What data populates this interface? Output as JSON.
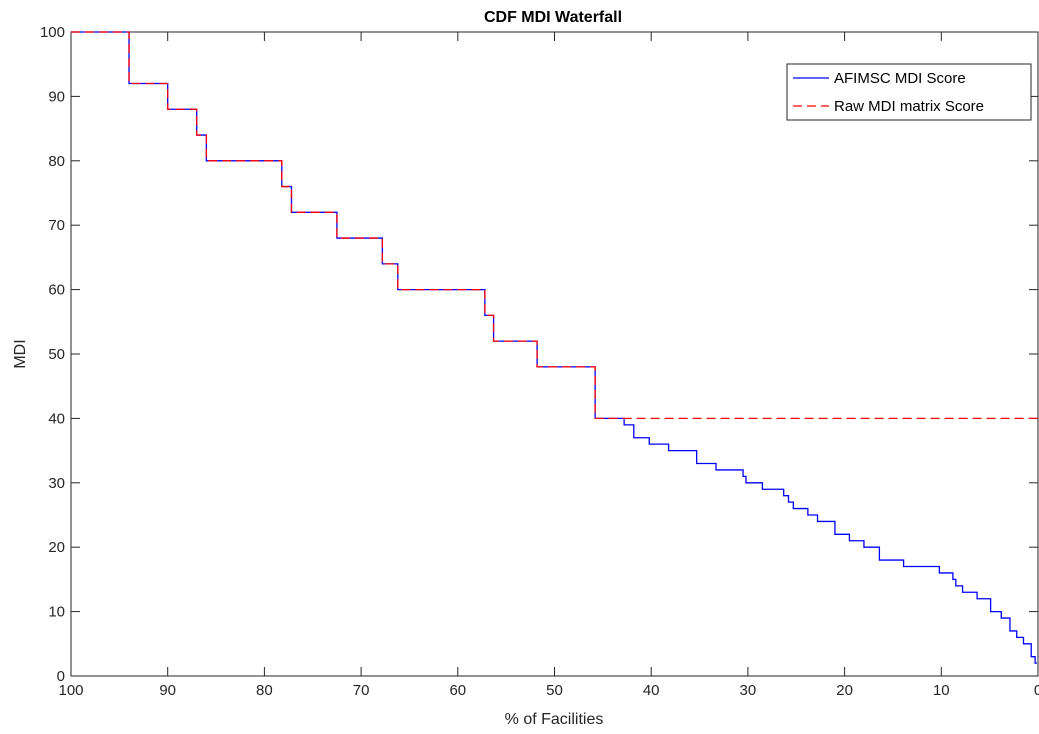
{
  "chart_data": {
    "type": "line",
    "title": "CDF MDI Waterfall",
    "xlabel": "% of Facilities",
    "ylabel": "MDI",
    "xlim": [
      100,
      0
    ],
    "x_reversed": true,
    "ylim": [
      0,
      100
    ],
    "xticks": [
      100,
      90,
      80,
      70,
      60,
      50,
      40,
      30,
      20,
      10,
      0
    ],
    "yticks": [
      0,
      10,
      20,
      30,
      40,
      50,
      60,
      70,
      80,
      90,
      100
    ],
    "grid": false,
    "legend_position": "top-right",
    "series": [
      {
        "name": "AFIMSC MDI Score",
        "color": "#0000ff",
        "line_style": "solid",
        "step": true,
        "x": [
          100,
          94,
          90,
          87,
          86,
          78.2,
          77.2,
          72.5,
          67.8,
          66.2,
          57.2,
          56.3,
          51.8,
          45.8,
          42.8,
          41.8,
          40.2,
          38.2,
          35.3,
          33.3,
          30.5,
          30.2,
          28.5,
          26.3,
          25.8,
          25.3,
          23.8,
          22.8,
          21,
          19.5,
          18,
          16.4,
          13.9,
          10.2,
          8.8,
          8.5,
          7.8,
          6.3,
          4.9,
          3.8,
          2.9,
          2.2,
          1.5,
          0.7,
          0.3,
          0.1
        ],
        "y": [
          100,
          92,
          88,
          84,
          80,
          76,
          72,
          68,
          64,
          60,
          56,
          52,
          48,
          40,
          39,
          37,
          36,
          35,
          33,
          32,
          31,
          30,
          29,
          28,
          27,
          26,
          25,
          24,
          22,
          21,
          20,
          18,
          17,
          16,
          15,
          14,
          13,
          12,
          10,
          9,
          7,
          6,
          5,
          3,
          2,
          2
        ]
      },
      {
        "name": "Raw MDI matrix Score",
        "color": "#ff0000",
        "line_style": "dashed",
        "step": true,
        "x": [
          100,
          94,
          90,
          87,
          86,
          78.2,
          77.2,
          72.5,
          67.8,
          66.2,
          57.2,
          56.3,
          51.8,
          45.8,
          0
        ],
        "y": [
          100,
          92,
          88,
          84,
          80,
          76,
          72,
          68,
          64,
          60,
          56,
          52,
          48,
          40,
          40
        ]
      }
    ]
  }
}
